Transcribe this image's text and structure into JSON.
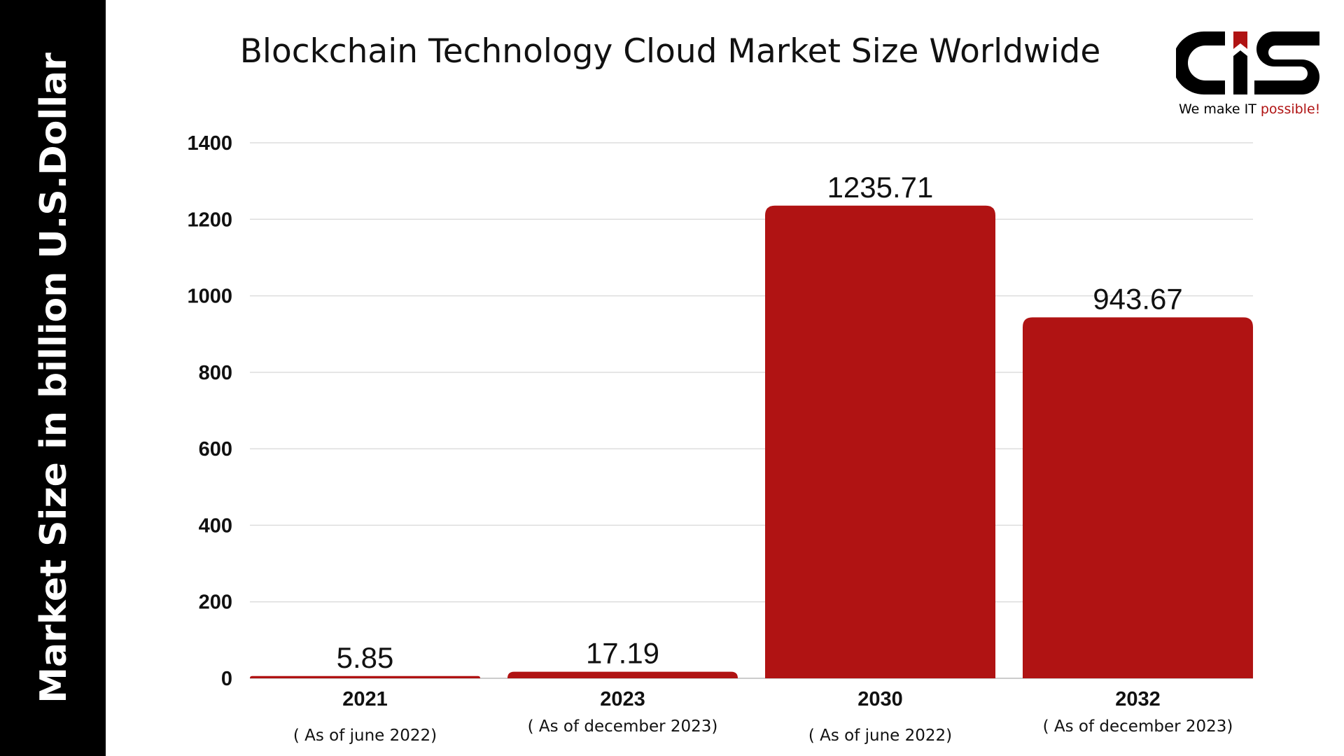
{
  "chart_data": {
    "type": "bar",
    "title": "Blockchain Technology Cloud Market Size Worldwide",
    "ylabel": "Market Size in billion U.S.Dollar",
    "xlabel": "",
    "categories": [
      "2021",
      "2023",
      "2030",
      "2032"
    ],
    "category_notes": [
      "( As of june 2022)",
      "( As of december 2023)",
      "( As of june 2022)",
      "( As of december 2023)"
    ],
    "values": [
      5.85,
      17.19,
      1235.71,
      943.67
    ],
    "data_labels": [
      "5.85",
      "17.19",
      "1235.71",
      "943.67"
    ],
    "ylim": [
      0,
      1400
    ],
    "yticks": [
      0,
      200,
      400,
      600,
      800,
      1000,
      1200,
      1400
    ],
    "grid": true,
    "bar_color": "#B01313"
  },
  "logo": {
    "text": "CIS",
    "tagline_a": "We make IT",
    "tagline_b": "possible!",
    "accent": "#B01313"
  }
}
